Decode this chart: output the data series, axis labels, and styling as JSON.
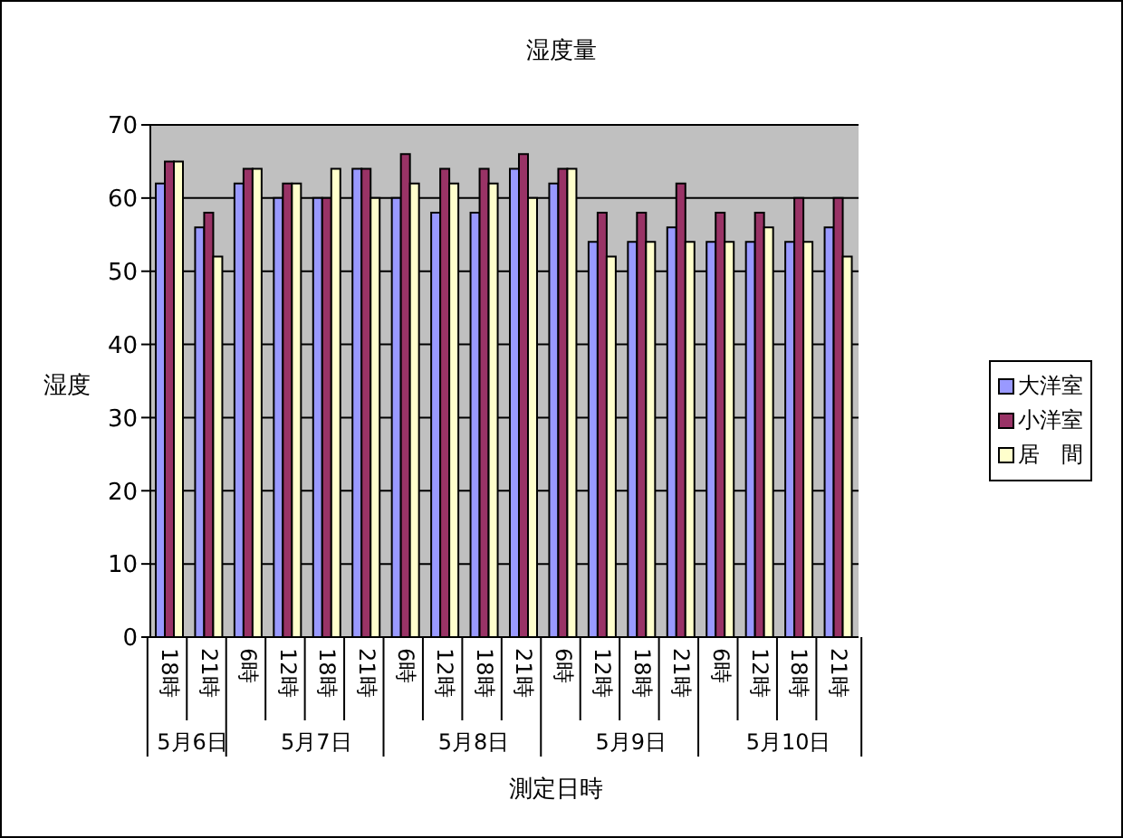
{
  "chart_data": {
    "type": "bar",
    "title": "湿度量",
    "xlabel": "測定日時",
    "ylabel": "湿度",
    "categories": [
      "18時",
      "21時",
      "6時",
      "12時",
      "18時",
      "21時",
      "6時",
      "12時",
      "18時",
      "21時",
      "6時",
      "12時",
      "18時",
      "21時",
      "6時",
      "12時",
      "18時",
      "21時"
    ],
    "annotations": [
      "5月6日",
      "5月7日",
      "5月8日",
      "5月9日",
      "5月10日"
    ],
    "series": [
      {
        "name": "大洋室",
        "color": "#9999ff",
        "values": [
          62,
          56,
          62,
          60,
          60,
          64,
          60,
          58,
          58,
          64,
          62,
          54,
          54,
          56,
          54,
          54,
          54,
          56
        ]
      },
      {
        "name": "小洋室",
        "color": "#993366",
        "values": [
          65,
          58,
          64,
          62,
          60,
          64,
          66,
          64,
          64,
          66,
          64,
          58,
          58,
          62,
          58,
          58,
          60,
          60
        ]
      },
      {
        "name": "居　間",
        "color": "#ffffcc",
        "values": [
          65,
          52,
          64,
          62,
          64,
          60,
          62,
          62,
          62,
          60,
          64,
          52,
          54,
          54,
          54,
          56,
          54,
          52
        ]
      }
    ],
    "ylim": [
      0,
      70
    ],
    "yticks": [
      0,
      10,
      20,
      30,
      40,
      50,
      60,
      70
    ],
    "grid": "y",
    "legend": "right"
  }
}
